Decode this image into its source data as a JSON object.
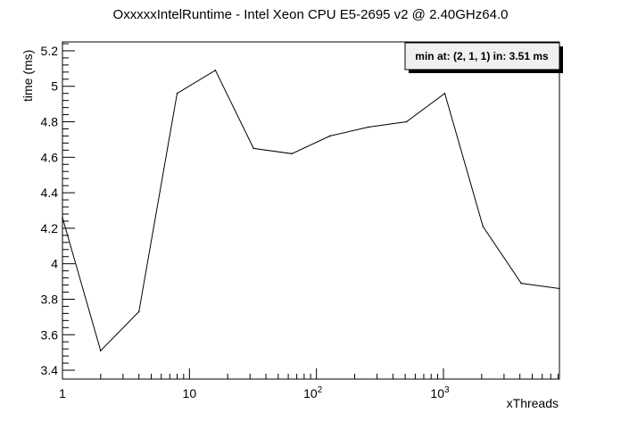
{
  "chart_data": {
    "type": "line",
    "title": "OxxxxxIntelRuntime - Intel Xeon CPU E5-2695 v2 @ 2.40GHz64.0",
    "xlabel": "xThreads",
    "ylabel": "time (ms)",
    "xscale": "log",
    "xlim": [
      1,
      8192
    ],
    "ylim": [
      3.35,
      5.25
    ],
    "x_ticks": [
      {
        "value": 1,
        "base": "1",
        "exp": ""
      },
      {
        "value": 10,
        "base": "10",
        "exp": ""
      },
      {
        "value": 100,
        "base": "10",
        "exp": "2"
      },
      {
        "value": 1000,
        "base": "10",
        "exp": "3"
      }
    ],
    "y_ticks": [
      "3.4",
      "3.6",
      "3.8",
      "4",
      "4.2",
      "4.4",
      "4.6",
      "4.8",
      "5",
      "5.2"
    ],
    "grid": false,
    "x": [
      1,
      2,
      4,
      8,
      16,
      32,
      64,
      128,
      256,
      512,
      1024,
      2048,
      4096,
      8192
    ],
    "values": [
      4.26,
      3.51,
      3.73,
      4.96,
      5.09,
      4.65,
      4.62,
      4.72,
      4.77,
      4.8,
      4.96,
      4.21,
      3.89,
      3.86
    ],
    "line_color": "#000000",
    "annotation": "min at: (2, 1, 1) in: 3.51 ms"
  }
}
